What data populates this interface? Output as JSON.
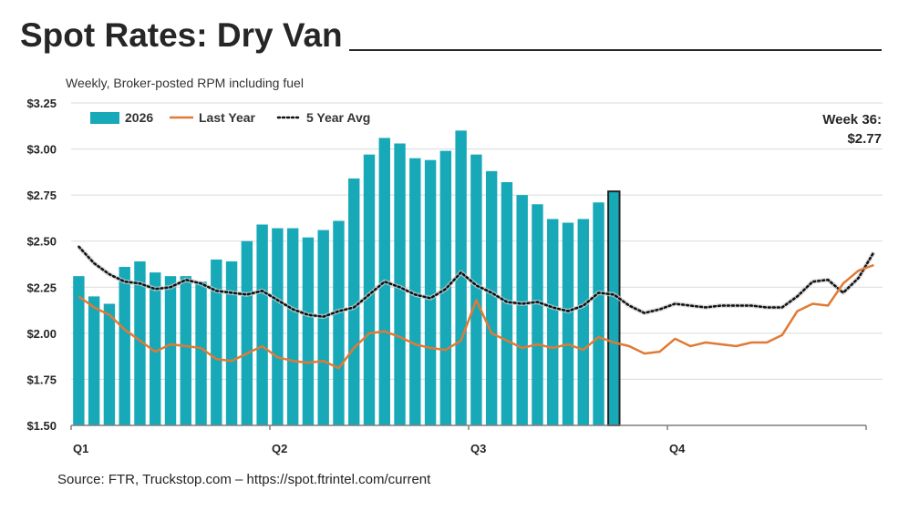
{
  "header": {
    "title": "Spot Rates: Dry Van",
    "subtitle": "Weekly, Broker-posted RPM including fuel"
  },
  "callout": {
    "line1": "Week 36:",
    "line2": "$2.77"
  },
  "footer": {
    "source": "Source: FTR, Truckstop.com – https://spot.ftrintel.com/current"
  },
  "colors": {
    "bars": "#17a9b8",
    "current_bar": "#17a9b8",
    "current_bar_border": "#262626",
    "last_year": "#e07a35",
    "five_year_avg": "#111111",
    "grid": "#d9d9d9",
    "axis": "#7f7f7f"
  },
  "chart_data": {
    "type": "bar",
    "title": "Spot Rates: Dry Van",
    "subtitle": "Weekly, Broker-posted RPM including fuel",
    "ylim": [
      1.5,
      3.25
    ],
    "yticks": [
      1.5,
      1.75,
      2.0,
      2.25,
      2.5,
      2.75,
      3.0,
      3.25
    ],
    "ytick_labels": [
      "$1.50",
      "$1.75",
      "$2.00",
      "$2.25",
      "$2.50",
      "$2.75",
      "$3.00",
      "$3.25"
    ],
    "x_weeks": 52,
    "quarter_labels": [
      {
        "label": "Q1",
        "week": 1
      },
      {
        "label": "Q2",
        "week": 14
      },
      {
        "label": "Q3",
        "week": 27
      },
      {
        "label": "Q4",
        "week": 40
      }
    ],
    "legend": {
      "position": "top-left",
      "entries": [
        "2026",
        "Last Year",
        "5 Year Avg"
      ]
    },
    "grid": true,
    "series": [
      {
        "name": "2026",
        "type": "bar",
        "values": [
          2.31,
          2.2,
          2.16,
          2.36,
          2.39,
          2.33,
          2.31,
          2.31,
          2.28,
          2.4,
          2.39,
          2.5,
          2.59,
          2.57,
          2.57,
          2.52,
          2.56,
          2.61,
          2.84,
          2.97,
          3.06,
          3.03,
          2.95,
          2.94,
          2.99,
          3.1,
          2.97,
          2.88,
          2.82,
          2.75,
          2.7,
          2.62,
          2.6,
          2.62,
          2.71,
          2.77
        ],
        "highlight_week": 36
      },
      {
        "name": "Last Year",
        "type": "line",
        "values": [
          2.2,
          2.14,
          2.1,
          2.02,
          1.96,
          1.9,
          1.94,
          1.93,
          1.92,
          1.86,
          1.85,
          1.89,
          1.93,
          1.87,
          1.85,
          1.84,
          1.85,
          1.81,
          1.92,
          2.0,
          2.01,
          1.98,
          1.94,
          1.92,
          1.91,
          1.96,
          2.18,
          2.0,
          1.96,
          1.92,
          1.94,
          1.92,
          1.94,
          1.91,
          1.98,
          1.95,
          1.93,
          1.89,
          1.9,
          1.97,
          1.93,
          1.95,
          1.94,
          1.93,
          1.95,
          1.95,
          1.99,
          2.12,
          2.16,
          2.15,
          2.27,
          2.34,
          2.37
        ]
      },
      {
        "name": "5 Year Avg",
        "type": "line",
        "values": [
          2.47,
          2.38,
          2.32,
          2.28,
          2.27,
          2.24,
          2.25,
          2.29,
          2.27,
          2.23,
          2.22,
          2.21,
          2.23,
          2.18,
          2.13,
          2.1,
          2.09,
          2.12,
          2.14,
          2.21,
          2.28,
          2.25,
          2.21,
          2.19,
          2.24,
          2.33,
          2.26,
          2.22,
          2.17,
          2.16,
          2.17,
          2.14,
          2.12,
          2.15,
          2.22,
          2.21,
          2.15,
          2.11,
          2.13,
          2.16,
          2.15,
          2.14,
          2.15,
          2.15,
          2.15,
          2.14,
          2.14,
          2.2,
          2.28,
          2.29,
          2.22,
          2.3,
          2.44
        ]
      }
    ]
  }
}
